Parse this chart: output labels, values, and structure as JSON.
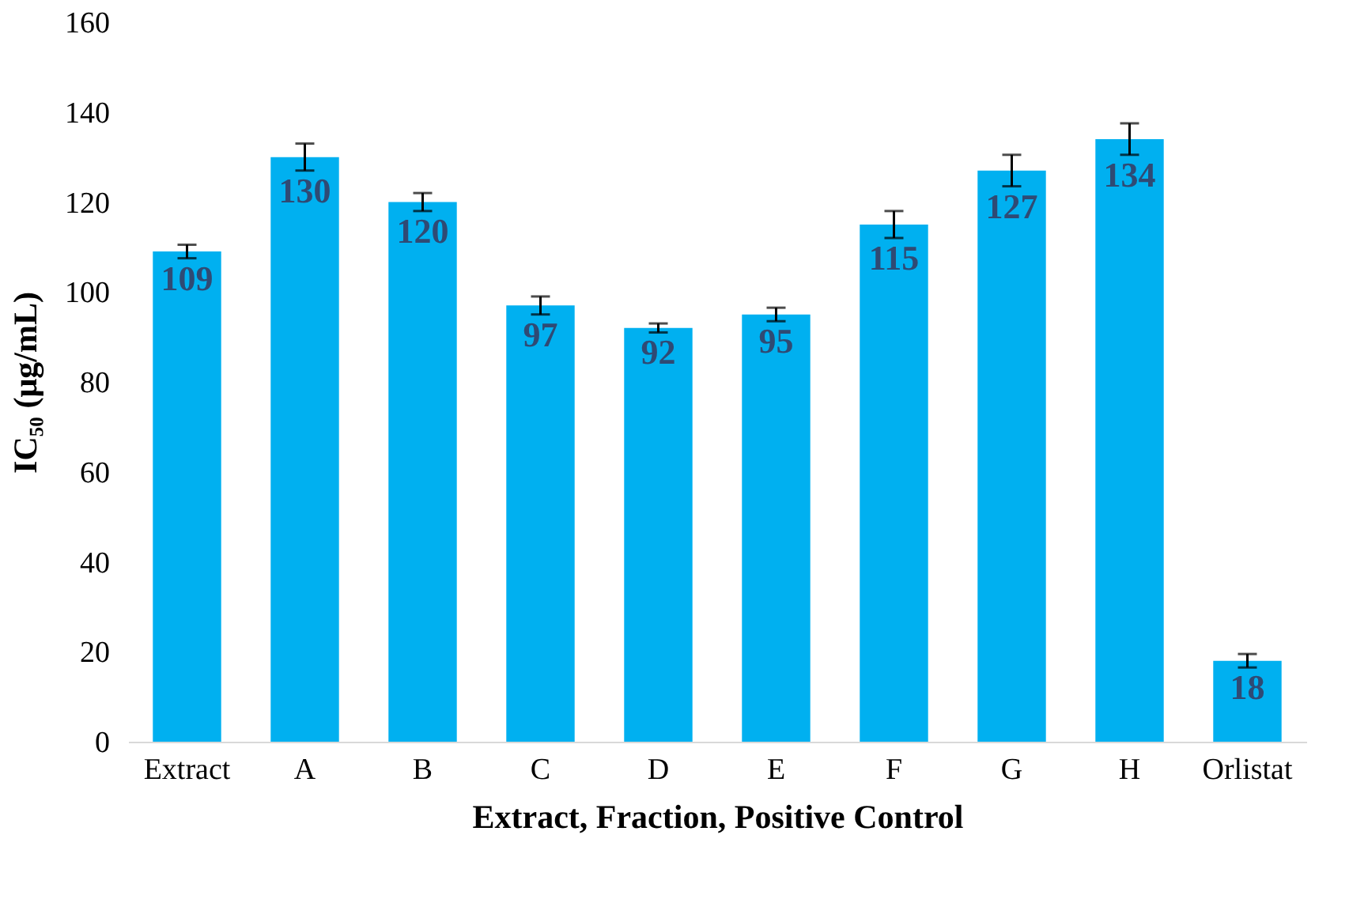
{
  "chart_data": {
    "type": "bar",
    "xlabel": "Extract, Fraction, Positive Control",
    "ylabel": "IC₅₀ (μg/mL)",
    "categories": [
      "Extract",
      "A",
      "B",
      "C",
      "D",
      "E",
      "F",
      "G",
      "H",
      "Orlistat"
    ],
    "values": [
      109,
      130,
      120,
      97,
      92,
      95,
      115,
      127,
      134,
      18
    ],
    "errors": [
      1.5,
      3,
      2,
      2,
      1,
      1.5,
      3,
      3.5,
      3.5,
      1.5
    ],
    "color": "#00b0f0",
    "data_labels": true,
    "ylim": [
      0,
      160
    ],
    "yticks": [
      0,
      20,
      40,
      60,
      80,
      100,
      120,
      140,
      160
    ],
    "grid": false
  }
}
